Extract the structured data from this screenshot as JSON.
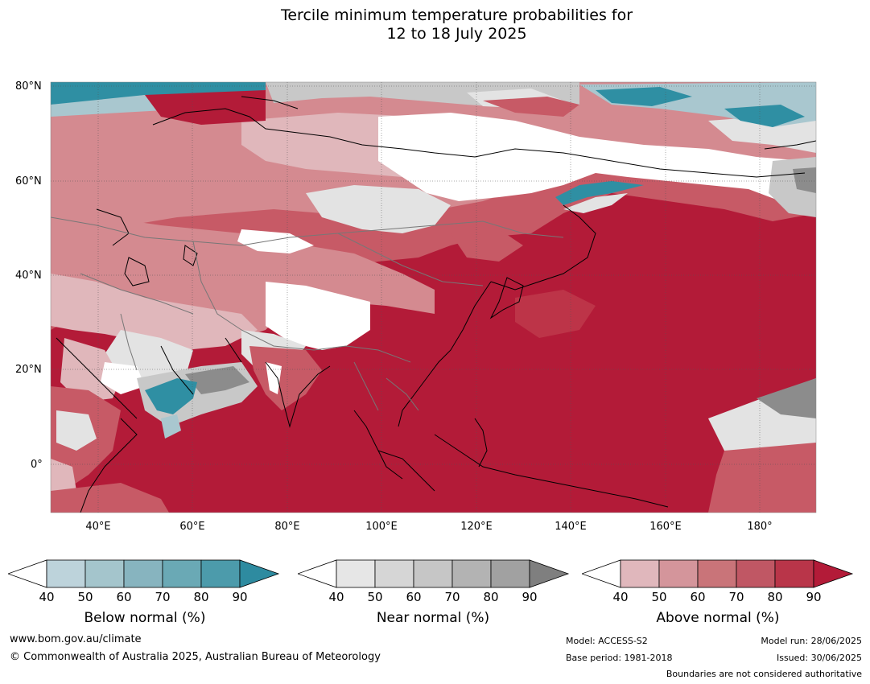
{
  "title": {
    "line1": "Tercile minimum temperature probabilities for",
    "line2": "12 to 18 July 2025"
  },
  "map": {
    "lat_labels": [
      "80°N",
      "60°N",
      "40°N",
      "20°N",
      "0°"
    ],
    "lon_labels": [
      "40°E",
      "60°E",
      "80°E",
      "100°E",
      "120°E",
      "140°E",
      "160°E",
      "180°"
    ],
    "colors": {
      "above_90": "#b31b38",
      "above_80": "#bd3448",
      "above_70": "#c75a66",
      "above_60": "#d48a90",
      "above_50": "#e0b7bb",
      "near_light": "#e3e3e3",
      "near_mid": "#c8c8c8",
      "near_dark": "#8c8c8c",
      "below_light": "#a9c7cf",
      "below_dark": "#2f8fa3"
    }
  },
  "colorbars": [
    {
      "name": "below",
      "title": "Below normal (%)",
      "ticks": [
        "40",
        "50",
        "60",
        "70",
        "80",
        "90"
      ],
      "colors": [
        "#ffffff",
        "#bdd3db",
        "#a4c5cc",
        "#87b4bf",
        "#6aa9b5",
        "#4c9bab",
        "#2e8ba0"
      ]
    },
    {
      "name": "near",
      "title": "Near normal (%)",
      "ticks": [
        "40",
        "50",
        "60",
        "70",
        "80",
        "90"
      ],
      "colors": [
        "#ffffff",
        "#e6e6e6",
        "#d6d6d6",
        "#c6c6c6",
        "#b3b3b3",
        "#a1a1a1",
        "#7f7f7f"
      ]
    },
    {
      "name": "above",
      "title": "Above normal (%)",
      "ticks": [
        "40",
        "50",
        "60",
        "70",
        "80",
        "90"
      ],
      "colors": [
        "#ffffff",
        "#e0b7bc",
        "#d4959b",
        "#c97479",
        "#c05764",
        "#b93549",
        "#b31b38"
      ]
    }
  ],
  "footer": {
    "url": "www.bom.gov.au/climate",
    "copyright": "© Commonwealth of Australia 2025, Australian Bureau of Meteorology",
    "model": "Model: ACCESS-S2",
    "base_period": "Base period: 1981-2018",
    "model_run": "Model run: 28/06/2025",
    "issued": "Issued: 30/06/2025",
    "disclaimer": "Boundaries are not considered authoritative"
  }
}
